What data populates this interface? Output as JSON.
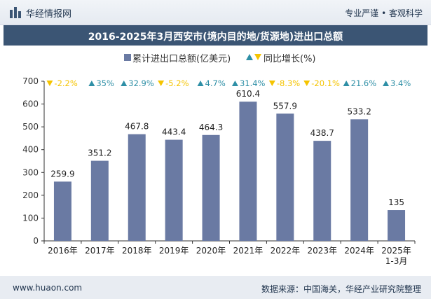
{
  "header": {
    "brand": "华经情报网",
    "tagline": "专业严谨 • 客观科学"
  },
  "title": "2016-2025年3月西安市(境内目的地/货源地)进出口总额",
  "legend": {
    "bar_label": "累计进出口总额(亿美元)",
    "growth_label": "同比增长(%)"
  },
  "footer": {
    "website": "www.huaon.com",
    "source": "数据来源：中国海关，华经产业研究院整理"
  },
  "colors": {
    "bar": "#6a7aa3",
    "up": "#2e8fa6",
    "down": "#f5c400",
    "title_bg": "#3b5574"
  },
  "chart_data": {
    "type": "bar",
    "categories": [
      "2016年",
      "2017年",
      "2018年",
      "2019年",
      "2020年",
      "2021年",
      "2022年",
      "2023年",
      "2024年",
      "2025年\n1-3月"
    ],
    "series": [
      {
        "name": "累计进出口总额(亿美元)",
        "values": [
          259.9,
          351.2,
          467.8,
          443.4,
          464.3,
          610.4,
          557.9,
          438.7,
          533.2,
          135
        ]
      },
      {
        "name": "同比增长(%)",
        "values": [
          -2.2,
          35,
          32.9,
          -5.2,
          4.7,
          31.4,
          -8.3,
          -20.1,
          21.6,
          3.4
        ]
      }
    ],
    "value_labels": [
      "259.9",
      "351.2",
      "467.8",
      "443.4",
      "464.3",
      "610.4",
      "557.9",
      "438.7",
      "533.2",
      "135"
    ],
    "growth_labels": [
      "-2.2%",
      "35%",
      "32.9%",
      "-5.2%",
      "4.7%",
      "31.4%",
      "-8.3%",
      "-20.1%",
      "21.6%",
      "3.4%"
    ],
    "ylim": [
      0,
      700
    ],
    "yticks": [
      0,
      100,
      200,
      300,
      400,
      500,
      600,
      700
    ],
    "grid": false,
    "legend_position": "top-center"
  }
}
